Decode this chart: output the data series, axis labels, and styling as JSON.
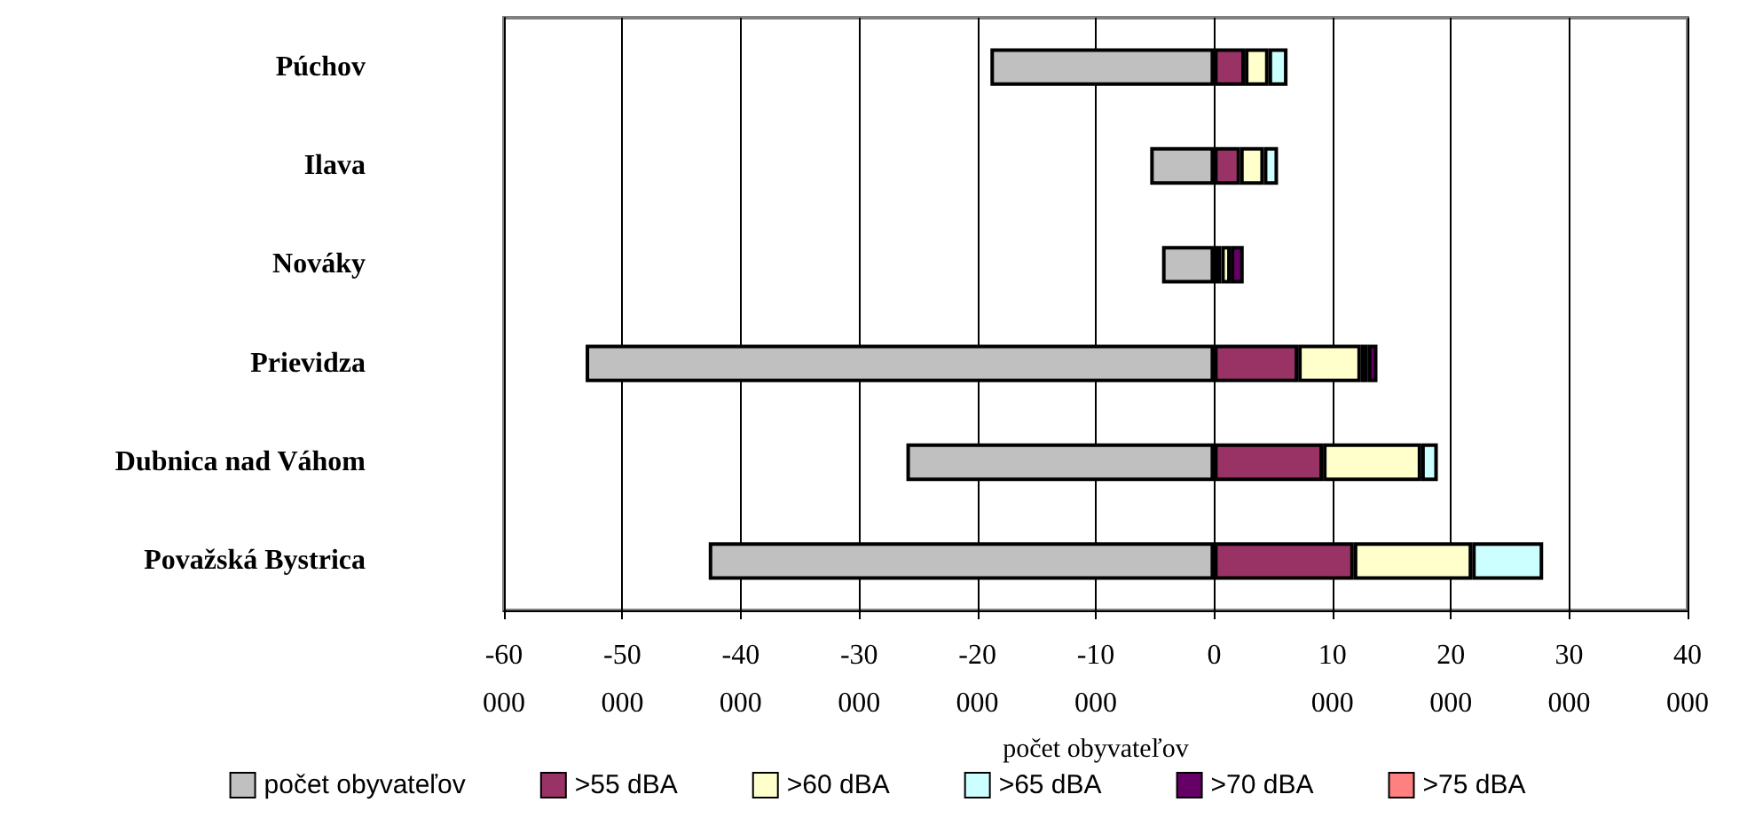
{
  "chart_data": {
    "type": "bar",
    "orientation": "horizontal",
    "stacked": true,
    "xlabel": "počet obyvateľov",
    "categories": [
      "Púchov",
      "Ilava",
      "Nováky",
      "Prievidza",
      "Dubnica nad Váhom",
      "Považská Bystrica"
    ],
    "series": [
      {
        "name": "počet obyvateľov",
        "color": "#c0c0c0",
        "values": [
          -18900,
          -5400,
          -4400,
          -53100,
          -26000,
          -42700
        ]
      },
      {
        "name": ">55 dBA",
        "color": "#993366",
        "values": [
          2600,
          2200,
          600,
          7100,
          9200,
          11800
        ]
      },
      {
        "name": ">60 dBA",
        "color": "#ffffcc",
        "values": [
          2000,
          2000,
          800,
          5300,
          8300,
          10000
        ]
      },
      {
        "name": ">65 dBA",
        "color": "#ccffff",
        "values": [
          1600,
          1200,
          null,
          600,
          1400,
          6000
        ]
      },
      {
        "name": ">70 dBA",
        "color": "#660066",
        "values": [
          null,
          null,
          1100,
          800,
          null,
          null
        ]
      },
      {
        "name": ">75 dBA",
        "color": "#ff8080",
        "values": [
          null,
          null,
          null,
          null,
          null,
          null
        ]
      }
    ],
    "xlim": [
      -60000,
      40000
    ],
    "xticks": [
      {
        "value": -60000,
        "label": "-60 000"
      },
      {
        "value": -50000,
        "label": "-50 000"
      },
      {
        "value": -40000,
        "label": "-40 000"
      },
      {
        "value": -30000,
        "label": "-30 000"
      },
      {
        "value": -20000,
        "label": "-20 000"
      },
      {
        "value": -10000,
        "label": "-10 000"
      },
      {
        "value": 0,
        "label": "0"
      },
      {
        "value": 10000,
        "label": "10 000"
      },
      {
        "value": 20000,
        "label": "20 000"
      },
      {
        "value": 30000,
        "label": "30 000"
      },
      {
        "value": 40000,
        "label": "40 000"
      }
    ],
    "grid": "x",
    "legend": "bottom"
  }
}
